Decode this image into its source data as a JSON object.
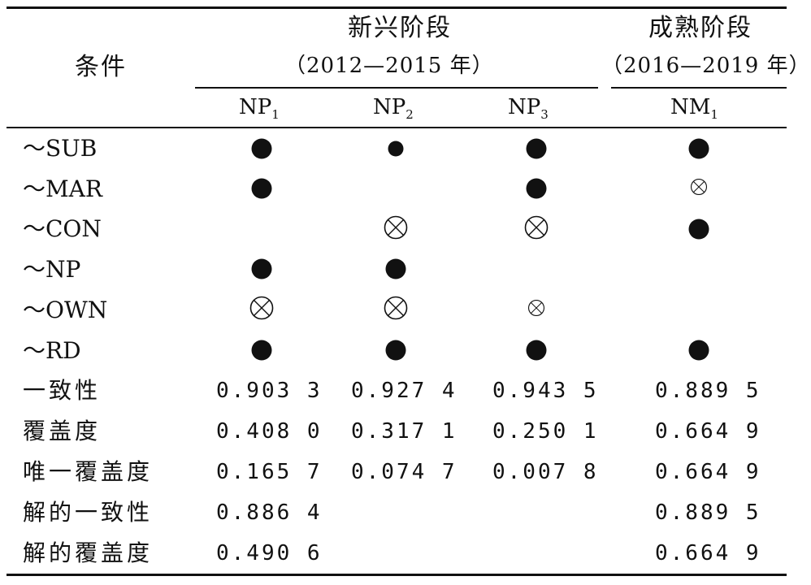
{
  "table": {
    "header": {
      "condition": "条件",
      "emerging_stage": "新兴阶段",
      "emerging_period": "（2012—2015 年）",
      "mature_stage": "成熟阶段",
      "mature_period": "（2016—2019 年）",
      "columns": [
        {
          "base": "NP",
          "subscript": "1"
        },
        {
          "base": "NP",
          "subscript": "2"
        },
        {
          "base": "NP",
          "subscript": "3"
        },
        {
          "base": "NM",
          "subscript": "1"
        }
      ]
    },
    "legend_symbols": {
      "core_present": "filled-circle-large",
      "peripheral_present": "filled-circle-small",
      "core_absent": "circled-x-large",
      "peripheral_absent": "circled-x-small",
      "absent_cell": "blank"
    },
    "condition_rows": [
      {
        "label": "～SUB",
        "cells": [
          "core_present",
          "peripheral_present",
          "core_present",
          "core_present"
        ]
      },
      {
        "label": "～MAR",
        "cells": [
          "core_present",
          "absent_cell",
          "core_present",
          "peripheral_absent"
        ]
      },
      {
        "label": "～CON",
        "cells": [
          "absent_cell",
          "core_absent",
          "core_absent",
          "core_present"
        ]
      },
      {
        "label": "～NP",
        "cells": [
          "core_present",
          "core_present",
          "absent_cell",
          "absent_cell"
        ]
      },
      {
        "label": "～OWN",
        "cells": [
          "core_absent",
          "core_absent",
          "peripheral_absent",
          "absent_cell"
        ]
      },
      {
        "label": "～RD",
        "cells": [
          "core_present",
          "core_present",
          "core_present",
          "core_present"
        ]
      }
    ],
    "metric_rows": [
      {
        "label": "一致性",
        "values": [
          "0.903 3",
          "0.927 4",
          "0.943 5",
          "0.889 5"
        ]
      },
      {
        "label": "覆盖度",
        "values": [
          "0.408 0",
          "0.317 1",
          "0.250 1",
          "0.664 9"
        ]
      },
      {
        "label": "唯一覆盖度",
        "values": [
          "0.165 7",
          "0.074 7",
          "0.007 8",
          "0.664 9"
        ]
      },
      {
        "label": "解的一致性",
        "values": [
          "0.886 4",
          "",
          "",
          "0.889 5"
        ]
      },
      {
        "label": "解的覆盖度",
        "values": [
          "0.490 6",
          "",
          "",
          "0.664 9"
        ]
      }
    ]
  }
}
